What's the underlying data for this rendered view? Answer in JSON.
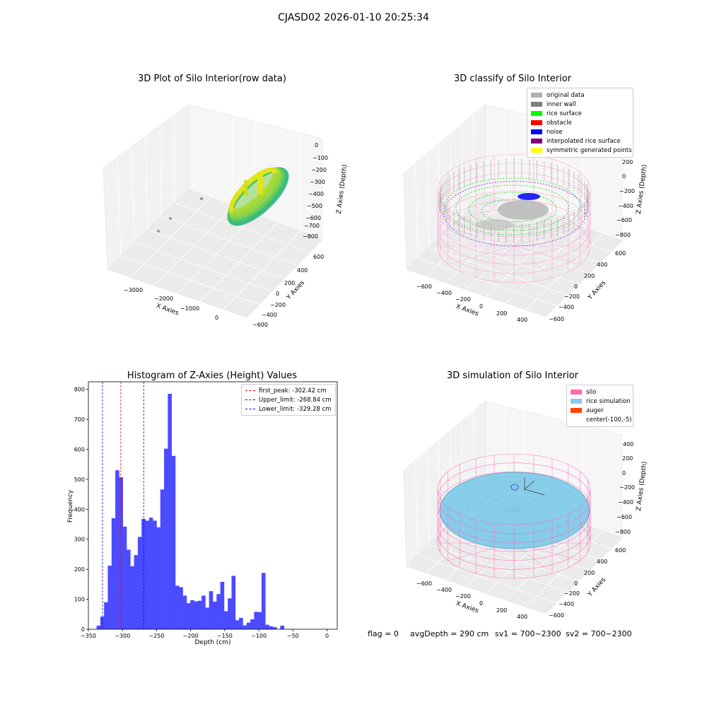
{
  "figure_title": "CJASD02 2026-01-10 20:25:34",
  "footer": {
    "flag": "flag = 0",
    "avg_depth": "avgDepth = 290 cm",
    "sv1": "sv1 = 700~2300",
    "sv2": "sv2 = 700~2300"
  },
  "colors": {
    "original": "#b0b0b0",
    "inner_wall": "#808080",
    "rice_surface": "#00ff00",
    "obstacle": "#ff0000",
    "noise": "#0000ff",
    "interpolated": "#800080",
    "symmetric": "#ffff00",
    "silo": "#ff69b4",
    "rice_sim": "#87ceeb",
    "auger": "#ff4500",
    "hist_bar": "#4b4bff",
    "first_peak": "#ff0000",
    "limit": "#0000ff"
  },
  "panels": {
    "raw": {
      "title": "3D Plot of Silo Interior(row data)",
      "xlabel": "X Axies",
      "ylabel": "Y Axies",
      "zlabel": "Z Axies (Depth)",
      "xticks": [
        "−3000",
        "−2000",
        "−1000",
        "0"
      ],
      "yticks": [
        "600",
        "400",
        "200",
        "0",
        "−200",
        "−400",
        "−600"
      ],
      "zticks": [
        "0",
        "−100",
        "−200",
        "−300",
        "−400",
        "−500",
        "−600",
        "−700",
        "−800"
      ]
    },
    "classify": {
      "title": "3D classify of Silo Interior",
      "xlabel": "X Axies",
      "ylabel": "Y Axies",
      "zlabel": "Z Axies (Depth)",
      "xticks": [
        "−600",
        "−400",
        "−200",
        "0",
        "200",
        "400"
      ],
      "yticks": [
        "600",
        "400",
        "200",
        "0",
        "−200",
        "−400",
        "−600"
      ],
      "zticks": [
        "200",
        "0",
        "−200",
        "−400",
        "−600",
        "−800"
      ],
      "zticks_top": "00",
      "legend": [
        {
          "label": "original data",
          "color": "#b0b0b0"
        },
        {
          "label": "inner wall",
          "color": "#808080"
        },
        {
          "label": "rice surface",
          "color": "#00ff00"
        },
        {
          "label": "obstacle",
          "color": "#ff0000"
        },
        {
          "label": "noise",
          "color": "#0000ff"
        },
        {
          "label": "interpolated rice surface",
          "color": "#800080"
        },
        {
          "label": "symmetric generated points",
          "color": "#ffff00"
        }
      ]
    },
    "simulation": {
      "title": "3D simulation of Silo Interior",
      "xlabel": "X Axies",
      "ylabel": "Y Axies",
      "zlabel": "Z Axies (Depth)",
      "xticks": [
        "−600",
        "−400",
        "−200",
        "0",
        "200",
        "400"
      ],
      "yticks": [
        "600",
        "400",
        "200",
        "0",
        "−200",
        "−400",
        "−600"
      ],
      "zticks": [
        "400",
        "200",
        "0",
        "−200",
        "−400",
        "−600",
        "−800"
      ],
      "legend": [
        {
          "label": "silo",
          "color": "#ff69b4"
        },
        {
          "label": "rice simulation",
          "color": "#87ceeb"
        },
        {
          "label": "auger",
          "color": "#ff4500"
        },
        {
          "label": "center(-100,-5)",
          "color": ""
        }
      ]
    }
  },
  "chart_data": {
    "type": "bar",
    "title": "Histogram of Z-Axies (Height) Values",
    "xlabel": "Depth (cm)",
    "ylabel": "Frequency",
    "xlim": [
      -350,
      15
    ],
    "ylim": [
      0,
      825
    ],
    "xticks": [
      -350,
      -300,
      -250,
      -200,
      -150,
      -100,
      -50,
      0
    ],
    "xtick_labels": [
      "−350",
      "−300",
      "−250",
      "−200",
      "−150",
      "−100",
      "−50",
      "0"
    ],
    "yticks": [
      0,
      100,
      200,
      300,
      400,
      500,
      600,
      700,
      800
    ],
    "bin_start": -338,
    "bin_width": 5.5,
    "values": [
      12,
      42,
      90,
      212,
      370,
      530,
      507,
      342,
      265,
      210,
      247,
      308,
      368,
      362,
      372,
      362,
      340,
      466,
      602,
      785,
      578,
      145,
      140,
      112,
      87,
      97,
      93,
      95,
      112,
      72,
      127,
      92,
      117,
      158,
      60,
      103,
      178,
      30,
      38,
      13,
      22,
      33,
      58,
      57,
      188,
      15,
      10,
      7,
      0,
      12
    ],
    "lines": [
      {
        "name": "first_peak: -302.42 cm",
        "x": -302.42,
        "color": "#ff0000"
      },
      {
        "name": "Upper_limit: -268.84 cm",
        "x": -268.84,
        "color": "#0000ff"
      },
      {
        "name": "Lower_limit: -329.28 cm",
        "x": -329.28,
        "color": "#0000ff"
      }
    ]
  }
}
